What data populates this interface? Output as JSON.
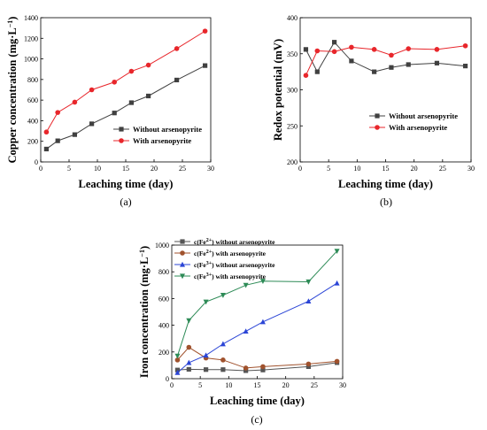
{
  "chart_data": [
    {
      "type": "line",
      "caption": "(a)",
      "xlabel": "Leaching time (day)",
      "ylabel": "Copper concentration (mg·L",
      "ylabel_sup": "−1",
      "ylabel_end": ")",
      "xlim": [
        0,
        30
      ],
      "ylim": [
        0,
        1400
      ],
      "xticks": [
        0,
        5,
        10,
        15,
        20,
        25,
        30
      ],
      "yticks": [
        0,
        200,
        400,
        600,
        800,
        1000,
        1200,
        1400
      ],
      "legend_position": "lower-right",
      "series": [
        {
          "name": "Without arsenopyrite",
          "color": "#404040",
          "marker": "square",
          "x": [
            1,
            3,
            6,
            9,
            13,
            16,
            19,
            24,
            29
          ],
          "y": [
            125,
            205,
            265,
            370,
            475,
            575,
            640,
            795,
            935
          ]
        },
        {
          "name": "With arsenopyrite",
          "color": "#e8262b",
          "marker": "circle",
          "x": [
            1,
            3,
            6,
            9,
            13,
            16,
            19,
            24,
            29
          ],
          "y": [
            290,
            480,
            580,
            700,
            775,
            880,
            940,
            1100,
            1270
          ]
        }
      ]
    },
    {
      "type": "line",
      "caption": "(b)",
      "xlabel": "Leaching time (day)",
      "ylabel": "Redox potential (mV)",
      "xlim": [
        0,
        30
      ],
      "ylim": [
        200,
        400
      ],
      "xticks": [
        0,
        5,
        10,
        15,
        20,
        25,
        30
      ],
      "yticks": [
        200,
        250,
        300,
        350,
        400
      ],
      "legend_position": "lower-right",
      "series": [
        {
          "name": "Without arsenopyrite",
          "color": "#404040",
          "marker": "square",
          "x": [
            1,
            3,
            6,
            9,
            13,
            16,
            19,
            24,
            29
          ],
          "y": [
            356,
            325,
            366,
            340,
            325,
            331,
            335,
            337,
            333
          ]
        },
        {
          "name": "With arsenopyrite",
          "color": "#e8262b",
          "marker": "circle",
          "x": [
            1,
            3,
            6,
            9,
            13,
            16,
            19,
            24,
            29
          ],
          "y": [
            320,
            354,
            353,
            359,
            356,
            348,
            357,
            356,
            361
          ]
        }
      ]
    },
    {
      "type": "line",
      "caption": "(c)",
      "xlabel": "Leaching time (day)",
      "ylabel": "Iron concentration (mg·L",
      "ylabel_sup": "−1",
      "ylabel_end": ")",
      "xlim": [
        0,
        30
      ],
      "ylim": [
        0,
        1000
      ],
      "xticks": [
        0,
        5,
        10,
        15,
        20,
        25,
        30
      ],
      "yticks": [
        0,
        200,
        400,
        600,
        800,
        1000
      ],
      "legend_position": "top-left",
      "series": [
        {
          "name": "c(Fe",
          "sup": "2+",
          "rest": ") without arsenopyrite",
          "color": "#555555",
          "marker": "square",
          "x": [
            1,
            3,
            6,
            9,
            13,
            16,
            24,
            29
          ],
          "y": [
            65,
            70,
            68,
            68,
            60,
            65,
            90,
            120
          ]
        },
        {
          "name": "c(Fe",
          "sup": "2+",
          "rest": ") with arsenopyrite",
          "color": "#a0522d",
          "marker": "circle",
          "x": [
            1,
            3,
            6,
            9,
            13,
            16,
            24,
            29
          ],
          "y": [
            140,
            235,
            155,
            140,
            80,
            90,
            110,
            130
          ]
        },
        {
          "name": "c(Fe",
          "sup": "3+",
          "rest": ") without arsenopyrite",
          "color": "#2b45d6",
          "marker": "triangle-up",
          "x": [
            1,
            3,
            6,
            9,
            13,
            16,
            24,
            29
          ],
          "y": [
            45,
            120,
            175,
            260,
            355,
            425,
            580,
            715
          ]
        },
        {
          "name": "c(Fe",
          "sup": "3+",
          "rest": ") with arsenopyrite",
          "color": "#2e8b57",
          "marker": "triangle-down",
          "x": [
            1,
            3,
            6,
            9,
            13,
            16,
            24,
            29
          ],
          "y": [
            170,
            435,
            575,
            625,
            700,
            730,
            725,
            955
          ]
        }
      ]
    }
  ]
}
